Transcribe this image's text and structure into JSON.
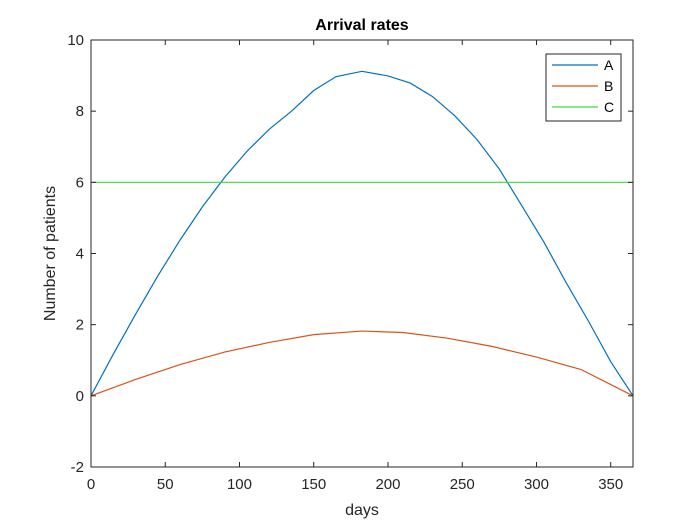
{
  "chart_data": {
    "type": "line",
    "title": "Arrival rates",
    "xlabel": "days",
    "ylabel": "Number of patients",
    "xlim": [
      0,
      365
    ],
    "ylim": [
      -2,
      10
    ],
    "xticks": [
      0,
      50,
      100,
      150,
      200,
      250,
      300,
      350
    ],
    "yticks": [
      -2,
      0,
      2,
      4,
      6,
      8,
      10
    ],
    "grid": false,
    "legend_position": "top-right",
    "series": [
      {
        "name": "A",
        "color": "#0072BD",
        "x": [
          0,
          15,
          30,
          45,
          60,
          75,
          90,
          105,
          120,
          135,
          150,
          165,
          182.5,
          200,
          215,
          230,
          245,
          260,
          275,
          290,
          305,
          320,
          335,
          350,
          365
        ],
        "y": [
          0,
          1.17,
          2.29,
          3.37,
          4.38,
          5.31,
          6.14,
          6.87,
          7.49,
          8.0,
          8.58,
          8.97,
          9.12,
          8.99,
          8.79,
          8.41,
          7.87,
          7.2,
          6.37,
          5.35,
          4.32,
          3.18,
          2.1,
          0.96,
          0
        ]
      },
      {
        "name": "B",
        "color": "#D95319",
        "x": [
          0,
          30,
          60,
          90,
          120,
          150,
          182.5,
          210,
          240,
          270,
          300,
          330,
          365
        ],
        "y": [
          0,
          0.46,
          0.88,
          1.23,
          1.5,
          1.72,
          1.82,
          1.78,
          1.62,
          1.39,
          1.09,
          0.74,
          0
        ]
      },
      {
        "name": "C",
        "color": "#3FD93F",
        "x": [
          0,
          365
        ],
        "y": [
          6,
          6
        ]
      }
    ]
  }
}
